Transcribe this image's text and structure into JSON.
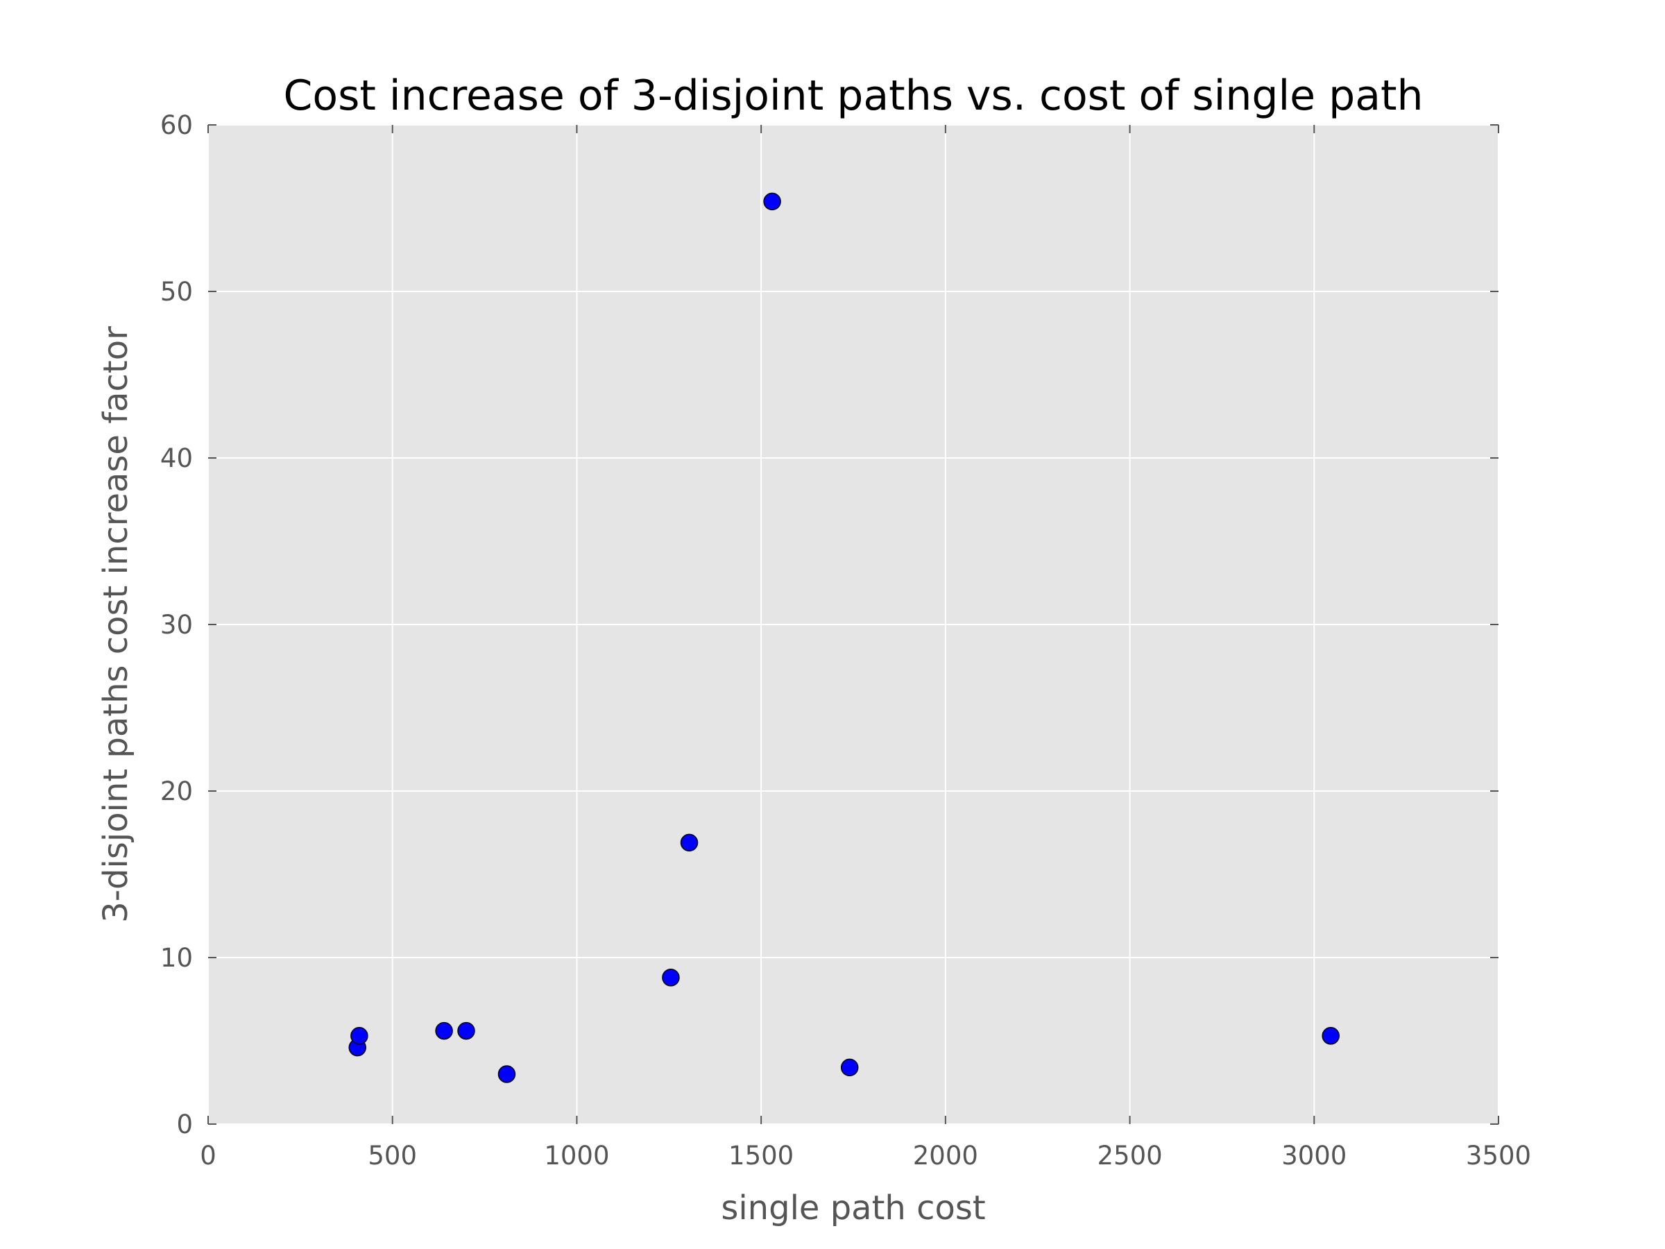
{
  "chart_data": {
    "type": "scatter",
    "title": "Cost increase of 3-disjoint paths vs. cost of single path",
    "xlabel": "single path cost",
    "ylabel": "3-disjoint paths cost increase factor",
    "xlim": [
      0,
      3500
    ],
    "ylim": [
      0,
      60
    ],
    "xticks": [
      0,
      500,
      1000,
      1500,
      2000,
      2500,
      3000,
      3500
    ],
    "yticks": [
      0,
      10,
      20,
      30,
      40,
      50,
      60
    ],
    "grid": true,
    "colors": {
      "background": "#e5e5e5",
      "point": "#0000ff",
      "point_edge": "#000000"
    },
    "x": [
      405,
      410,
      640,
      700,
      810,
      1255,
      1305,
      1530,
      1740,
      3045
    ],
    "y": [
      4.6,
      5.3,
      5.6,
      5.6,
      3.0,
      8.8,
      16.9,
      55.4,
      3.4,
      5.3
    ]
  }
}
